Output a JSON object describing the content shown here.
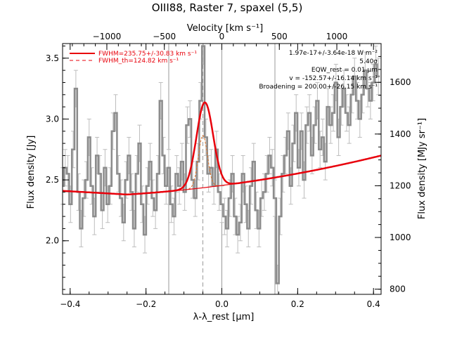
{
  "chart_data": {
    "type": "line",
    "title": "OIII88, Raster 7, spaxel (5,5)",
    "xlabel": "λ-λ_rest [μm]",
    "ylabel": "Flux density [Jy]",
    "y2label": "Flux density [MJy sr⁻¹]",
    "top_xlabel": "Velocity [km s⁻¹]",
    "xlim": [
      -0.42,
      0.42
    ],
    "ylim": [
      1.56,
      3.62
    ],
    "y2lim": [
      780,
      1750
    ],
    "top_xlim": [
      -1385,
      1385
    ],
    "x_ticks": [
      {
        "value": -0.4,
        "label": "−0.4"
      },
      {
        "value": -0.2,
        "label": "−0.2"
      },
      {
        "value": 0.0,
        "label": "0.0"
      },
      {
        "value": 0.2,
        "label": "0.2"
      },
      {
        "value": 0.4,
        "label": "0.4"
      }
    ],
    "y_ticks": [
      {
        "value": 2.0,
        "label": "2.0"
      },
      {
        "value": 2.5,
        "label": "2.5"
      },
      {
        "value": 3.0,
        "label": "3.0"
      },
      {
        "value": 3.5,
        "label": "3.5"
      }
    ],
    "y2_ticks": [
      {
        "value": 800,
        "label": "800"
      },
      {
        "value": 1000,
        "label": "1000"
      },
      {
        "value": 1200,
        "label": "1200"
      },
      {
        "value": 1400,
        "label": "1400"
      },
      {
        "value": 1600,
        "label": "1600"
      }
    ],
    "top_ticks": [
      {
        "value": -1000,
        "label": "−1000"
      },
      {
        "value": -500,
        "label": "−500"
      },
      {
        "value": 0,
        "label": "0"
      },
      {
        "value": 500,
        "label": "500"
      },
      {
        "value": 1000,
        "label": "1000"
      }
    ],
    "vertical_lines": [
      {
        "x": -0.14,
        "style": "solid"
      },
      {
        "x": 0.0,
        "style": "solid"
      },
      {
        "x": 0.14,
        "style": "solid"
      },
      {
        "x": -0.05,
        "style": "dashed"
      }
    ],
    "legend": [
      {
        "label": "FWHM=235.75+/-30.83 km s⁻¹",
        "style": "solid",
        "color": "#e8000b"
      },
      {
        "label": "FWHM_th=124.82 km s⁻¹",
        "style": "dashed",
        "color": "#e8000b"
      }
    ],
    "annotations": [
      "1.97e-17+/-3.64e-18 W m⁻²",
      "5.40σ",
      "EQW_rest = 0.01 μm",
      "v = -152.57+/-16.14 km s⁻¹",
      "Broadening = 200.00+/-26.15 km s⁻¹"
    ],
    "colors": {
      "data": "#8c8c8c",
      "error": "#bdbdbd",
      "fit": "#e8000b",
      "model": "#e07020",
      "grid": "#9a9a9a"
    },
    "fit": {
      "continuum_at_xmin": 2.41,
      "continuum_min": 2.38,
      "continuum_min_x": -0.25,
      "continuum_at_xmax": 2.7,
      "line_center": -0.045,
      "line_amplitude": 0.7,
      "line_sigma": 0.022
    },
    "model_line": {
      "center": -0.05,
      "amplitude": 0.43,
      "sigma": 0.012
    },
    "series": [
      {
        "name": "data",
        "x": [
          -0.42,
          -0.413,
          -0.406,
          -0.399,
          -0.392,
          -0.385,
          -0.378,
          -0.371,
          -0.364,
          -0.357,
          -0.35,
          -0.343,
          -0.336,
          -0.329,
          -0.322,
          -0.315,
          -0.308,
          -0.301,
          -0.294,
          -0.287,
          -0.28,
          -0.273,
          -0.266,
          -0.259,
          -0.252,
          -0.245,
          -0.238,
          -0.231,
          -0.224,
          -0.217,
          -0.21,
          -0.203,
          -0.196,
          -0.189,
          -0.182,
          -0.175,
          -0.168,
          -0.161,
          -0.154,
          -0.147,
          -0.14,
          -0.133,
          -0.126,
          -0.119,
          -0.112,
          -0.105,
          -0.098,
          -0.091,
          -0.084,
          -0.077,
          -0.07,
          -0.063,
          -0.056,
          -0.049,
          -0.042,
          -0.035,
          -0.028,
          -0.021,
          -0.014,
          -0.007,
          0.0,
          0.007,
          0.014,
          0.021,
          0.028,
          0.035,
          0.042,
          0.049,
          0.056,
          0.063,
          0.07,
          0.077,
          0.084,
          0.091,
          0.098,
          0.105,
          0.112,
          0.119,
          0.126,
          0.133,
          0.14,
          0.147,
          0.154,
          0.161,
          0.168,
          0.175,
          0.182,
          0.189,
          0.196,
          0.203,
          0.21,
          0.217,
          0.224,
          0.231,
          0.238,
          0.245,
          0.252,
          0.259,
          0.266,
          0.273,
          0.28,
          0.287,
          0.294,
          0.301,
          0.308,
          0.315,
          0.322,
          0.329,
          0.336,
          0.343,
          0.35,
          0.357,
          0.364,
          0.371,
          0.378,
          0.385,
          0.392,
          0.399,
          0.406,
          0.413
        ],
        "y": [
          2.45,
          2.6,
          2.55,
          2.3,
          2.75,
          3.25,
          2.4,
          2.1,
          2.35,
          2.5,
          2.85,
          2.45,
          2.2,
          2.7,
          2.55,
          2.25,
          2.6,
          2.3,
          2.45,
          2.9,
          3.05,
          2.55,
          2.35,
          2.15,
          2.5,
          2.7,
          2.4,
          2.1,
          2.55,
          2.8,
          2.3,
          2.05,
          2.45,
          2.65,
          2.35,
          2.25,
          2.55,
          3.15,
          2.7,
          2.45,
          2.6,
          2.3,
          2.2,
          2.55,
          2.45,
          2.65,
          2.4,
          2.95,
          3.0,
          2.5,
          2.35,
          2.65,
          3.15,
          3.6,
          2.85,
          2.55,
          2.6,
          2.45,
          2.75,
          2.4,
          2.3,
          2.2,
          2.1,
          2.35,
          2.55,
          2.2,
          2.05,
          2.15,
          2.55,
          2.3,
          2.1,
          2.45,
          2.65,
          2.25,
          2.1,
          2.35,
          2.4,
          2.55,
          2.7,
          2.6,
          2.35,
          1.65,
          2.2,
          2.55,
          2.7,
          2.9,
          2.45,
          2.8,
          3.05,
          2.6,
          2.9,
          2.5,
          2.95,
          3.05,
          2.7,
          2.95,
          3.15,
          2.75,
          2.85,
          2.65,
          3.1,
          2.95,
          3.05,
          3.3,
          2.85,
          3.1,
          3.25,
          3.05,
          2.95,
          3.2,
          3.35,
          3.15,
          3.0,
          3.2,
          3.4,
          3.25,
          3.15,
          3.3,
          3.45,
          3.35
        ],
        "err": 0.15
      }
    ]
  }
}
